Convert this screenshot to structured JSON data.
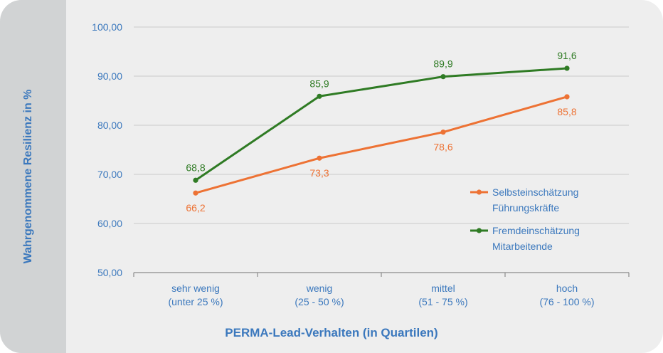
{
  "chart_data": {
    "type": "line",
    "ylabel": "Wahrgenommene Resilienz in %",
    "xlabel": "PERMA-Lead-Verhalten (in Quartilen)",
    "ylim": [
      50,
      100
    ],
    "yticks": [
      "50,00",
      "60,00",
      "70,00",
      "80,00",
      "90,00",
      "100,00"
    ],
    "categories": [
      [
        "sehr wenig",
        "(unter 25 %)"
      ],
      [
        "wenig",
        "(25 - 50 %)"
      ],
      [
        "mittel",
        "(51 - 75 %)"
      ],
      [
        "hoch",
        "(76 - 100 %)"
      ]
    ],
    "grid": true,
    "legend_position": "right",
    "series": [
      {
        "name": "Selbsteinschätzung Führungskräfte",
        "legend_lines": [
          "Selbsteinschätzung",
          "Führungskräfte"
        ],
        "values": [
          66.2,
          73.3,
          78.6,
          85.8
        ],
        "labels": [
          "66,2",
          "73,3",
          "78,6",
          "85,8"
        ],
        "color": "#ed7234",
        "label_position": "below"
      },
      {
        "name": "Fremdeinschätzung Mitarbeitende",
        "legend_lines": [
          "Fremdeinschätzung",
          "Mitarbeitende"
        ],
        "values": [
          68.8,
          85.9,
          89.9,
          91.6
        ],
        "labels": [
          "68,8",
          "85,9",
          "89,9",
          "91,6"
        ],
        "color": "#2f7b24",
        "label_position": "above"
      }
    ]
  },
  "colors": {
    "axis_text": "#3b78bd",
    "sidebar": "#d1d3d4",
    "background": "#eeeeee",
    "grid": "#c9c9c9"
  }
}
